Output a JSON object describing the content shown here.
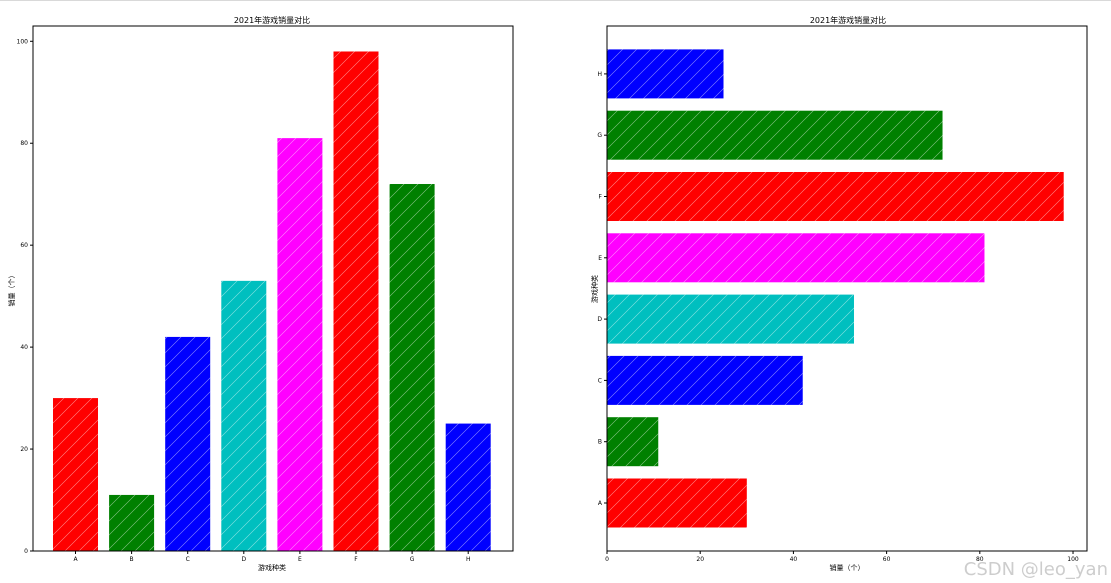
{
  "watermark": "CSDN @leo_yan",
  "chart_data": [
    {
      "type": "bar",
      "orientation": "vertical",
      "title": "2021年游戏销量对比",
      "xlabel": "游戏种类",
      "ylabel": "销量（个）",
      "categories": [
        "A",
        "B",
        "C",
        "D",
        "E",
        "F",
        "G",
        "H"
      ],
      "values": [
        30,
        11,
        42,
        53,
        81,
        98,
        72,
        25
      ],
      "colors": [
        "#ff0000",
        "#008000",
        "#0000ff",
        "#00bfbf",
        "#ff00ff",
        "#ff0000",
        "#008000",
        "#0000ff"
      ],
      "hatch": "/",
      "ylim": [
        0,
        103
      ],
      "yticks": [
        0,
        20,
        40,
        60,
        80,
        100
      ],
      "grid": false
    },
    {
      "type": "bar",
      "orientation": "horizontal",
      "title": "2021年游戏销量对比",
      "xlabel": "销量（个）",
      "ylabel": "游戏种类",
      "categories": [
        "A",
        "B",
        "C",
        "D",
        "E",
        "F",
        "G",
        "H"
      ],
      "values": [
        30,
        11,
        42,
        53,
        81,
        98,
        72,
        25
      ],
      "colors": [
        "#ff0000",
        "#008000",
        "#0000ff",
        "#00bfbf",
        "#ff00ff",
        "#ff0000",
        "#008000",
        "#0000ff"
      ],
      "hatch": "/",
      "xlim": [
        0,
        103
      ],
      "xticks": [
        0,
        20,
        40,
        60,
        80,
        100
      ],
      "grid": false
    }
  ]
}
